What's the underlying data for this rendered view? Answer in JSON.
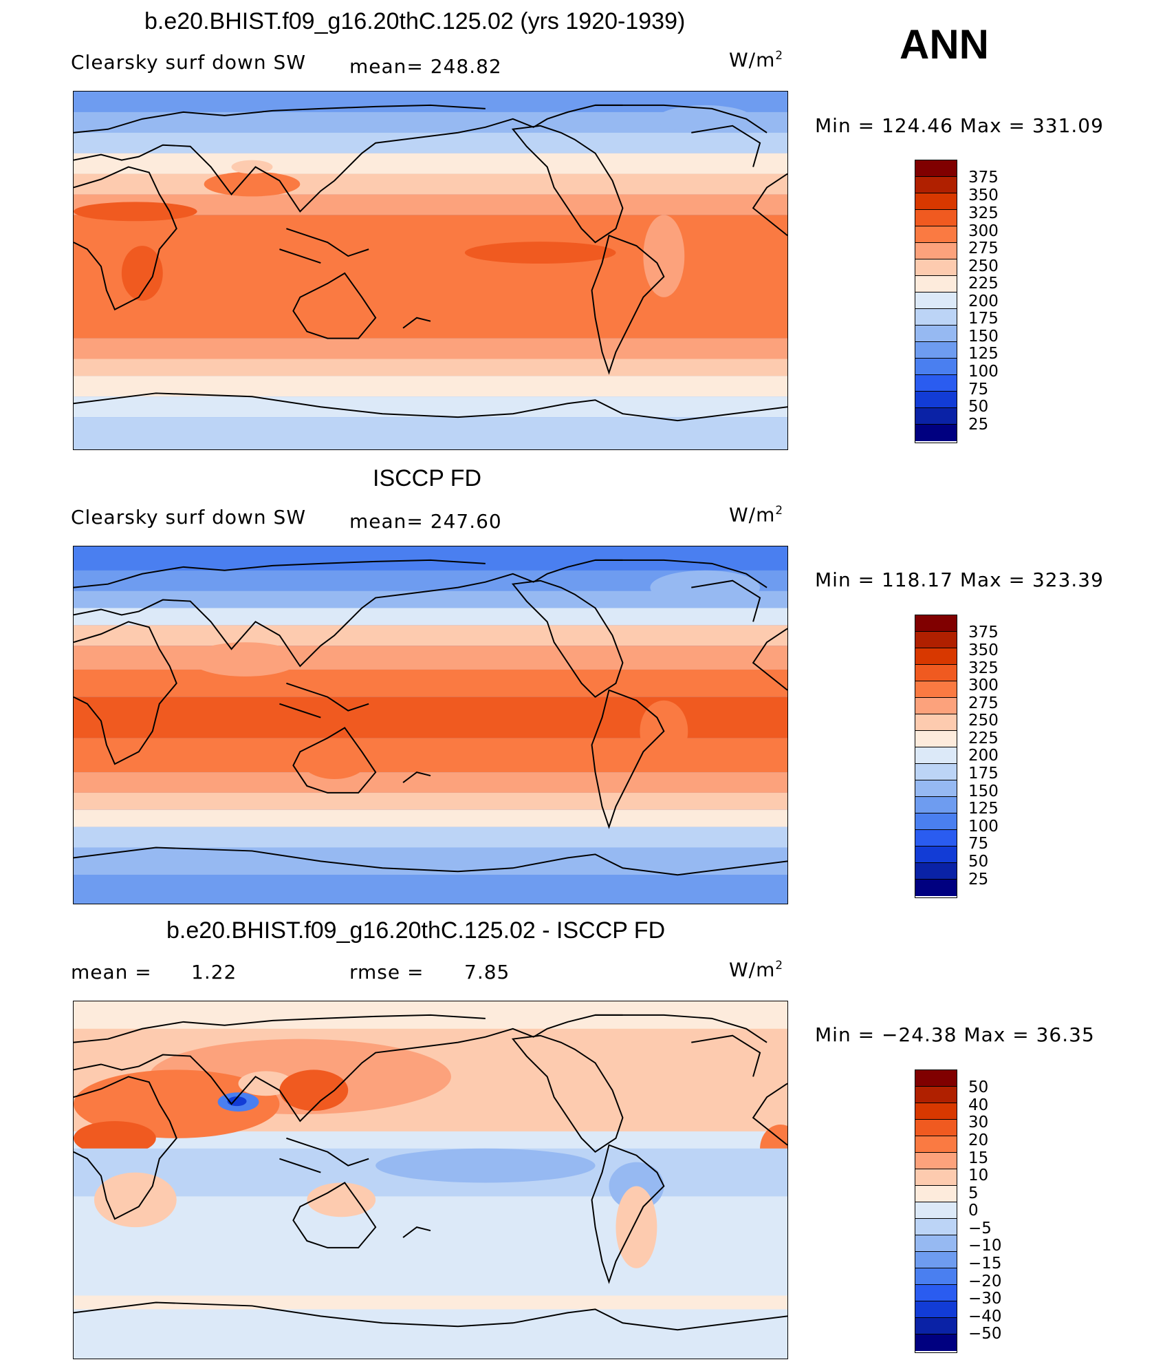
{
  "season": "ANN",
  "units": "W/m",
  "units_sup": "2",
  "panels": [
    {
      "title": "b.e20.BHIST.f09_g16.20thC.125.02 (yrs 1920-1939)",
      "variable": "Clearsky surf down SW",
      "stat_text": "mean=  248.82",
      "minmax": "Min  =  124.46  Max  =  331.09",
      "colorbar": {
        "labels": [
          "375",
          "350",
          "325",
          "300",
          "275",
          "250",
          "225",
          "200",
          "175",
          "150",
          "125",
          "100",
          "75",
          "50",
          "25"
        ],
        "colors": [
          "#800000",
          "#b02000",
          "#d83800",
          "#f05a20",
          "#fa7a42",
          "#fca27c",
          "#fdcbaf",
          "#fdebdc",
          "#dce9f8",
          "#bcd4f6",
          "#96b9f2",
          "#6e9cf0",
          "#4a7ff0",
          "#2a5cf0",
          "#123cd6",
          "#0a22a6",
          "#000080"
        ]
      }
    },
    {
      "title": "ISCCP FD",
      "variable": "Clearsky surf down SW",
      "stat_text": "mean=  247.60",
      "minmax": "Min  =  118.17  Max  =  323.39",
      "colorbar": {
        "labels": [
          "375",
          "350",
          "325",
          "300",
          "275",
          "250",
          "225",
          "200",
          "175",
          "150",
          "125",
          "100",
          "75",
          "50",
          "25"
        ],
        "colors": [
          "#800000",
          "#b02000",
          "#d83800",
          "#f05a20",
          "#fa7a42",
          "#fca27c",
          "#fdcbaf",
          "#fdebdc",
          "#dce9f8",
          "#bcd4f6",
          "#96b9f2",
          "#6e9cf0",
          "#4a7ff0",
          "#2a5cf0",
          "#123cd6",
          "#0a22a6",
          "#000080"
        ]
      }
    },
    {
      "title": "b.e20.BHIST.f09_g16.20thC.125.02 - ISCCP FD",
      "mean_label": "mean  =",
      "mean_value": "1.22",
      "rmse_label": "rmse  =",
      "rmse_value": "7.85",
      "minmax": "Min  =  −24.38  Max  =    36.35",
      "colorbar": {
        "labels": [
          "50",
          "40",
          "30",
          "20",
          "15",
          "10",
          "5",
          "0",
          "−5",
          "−10",
          "−15",
          "−20",
          "−30",
          "−40",
          "−50"
        ],
        "colors": [
          "#800000",
          "#b02000",
          "#d83800",
          "#f05a20",
          "#fa7a42",
          "#fca27c",
          "#fdcbaf",
          "#fdebdc",
          "#dce9f8",
          "#bcd4f6",
          "#96b9f2",
          "#6e9cf0",
          "#4a7ff0",
          "#2a5cf0",
          "#123cd6",
          "#0a22a6",
          "#000080"
        ]
      }
    }
  ]
}
